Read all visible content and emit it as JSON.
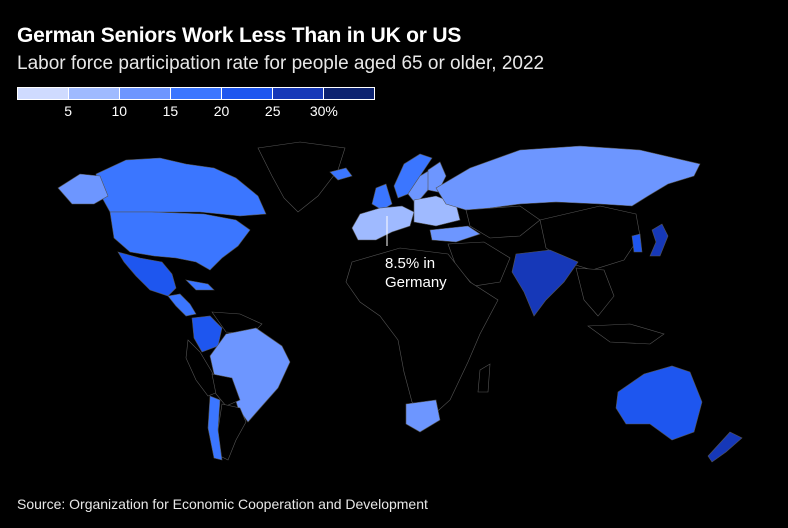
{
  "title": "German Seniors Work Less Than in UK or US",
  "subtitle": "Labor force participation rate for people aged 65 or older, 2022",
  "legend": {
    "colors": [
      "#cfdbff",
      "#9fbaff",
      "#6d96ff",
      "#3b76ff",
      "#1e56ef",
      "#1638b8",
      "#0c2270"
    ],
    "ticks": [
      "5",
      "10",
      "15",
      "20",
      "25",
      "30%"
    ]
  },
  "annotation": {
    "line1": "8.5% in",
    "line2": "Germany"
  },
  "source": "Source: Organization for Economic Cooperation and Development",
  "colors": {
    "background": "#000000",
    "no_data": "#000000",
    "borders": "#555555"
  }
}
